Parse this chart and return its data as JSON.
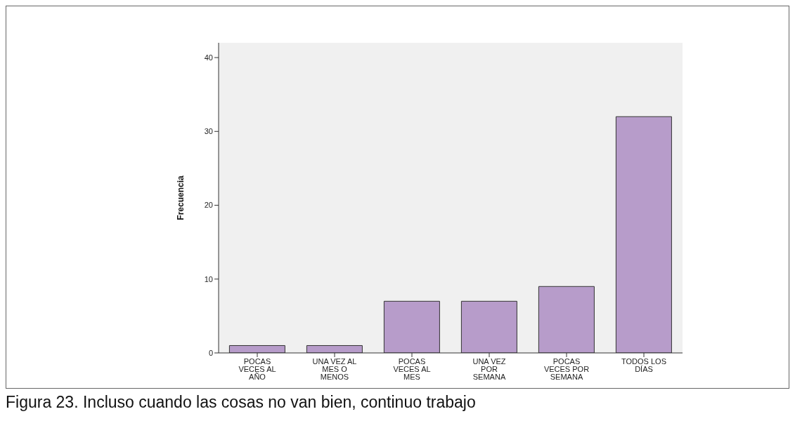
{
  "chart_data": {
    "type": "bar",
    "ylabel": "Frecuencia",
    "categories": [
      "POCAS VECES AL AÑO",
      "UNA VEZ AL MES O MENOS",
      "POCAS VECES AL MES",
      "UNA VEZ POR SEMANA",
      "POCAS VECES POR SEMANA",
      "TODOS LOS DÍAS"
    ],
    "values": [
      1,
      1,
      7,
      7,
      9,
      32
    ],
    "color": "#b79cca",
    "ylim": [
      0,
      42
    ],
    "yticks": [
      0,
      10,
      20,
      30,
      40
    ],
    "grid": false,
    "legend": false,
    "annotations": [
      "Figura 23. Incluso cuando las cosas no van bien, continuo trabajo"
    ]
  }
}
